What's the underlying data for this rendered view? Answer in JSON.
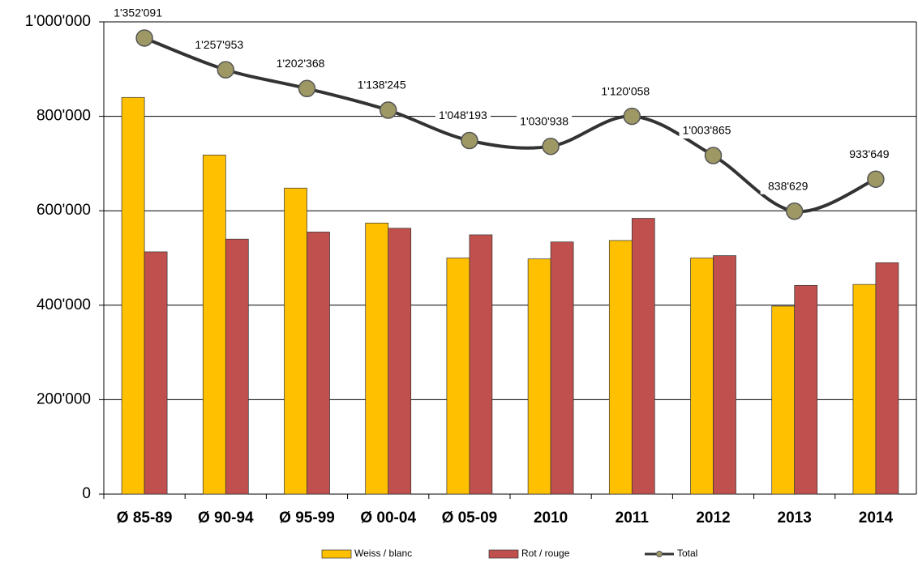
{
  "chart_data": {
    "type": "bar",
    "categories": [
      "Ø 85-89",
      "Ø 90-94",
      "Ø 95-99",
      "Ø 00-04",
      "Ø 05-09",
      "2010",
      "2011",
      "2012",
      "2013",
      "2014"
    ],
    "series": [
      {
        "name": "Weiss / blanc",
        "color": "#ffc000",
        "values": [
          840000,
          718000,
          648000,
          574000,
          500000,
          498000,
          537000,
          500000,
          398000,
          444000
        ]
      },
      {
        "name": "Rot / rouge",
        "color": "#c0504d",
        "values": [
          513000,
          540000,
          555000,
          563000,
          549000,
          534000,
          584000,
          505000,
          442000,
          490000
        ]
      },
      {
        "name": "Total",
        "type": "line",
        "axis": "y2",
        "color": "#333333",
        "marker_color": "#9e9865",
        "values": [
          1352091,
          1257953,
          1202368,
          1138245,
          1048193,
          1030938,
          1120058,
          1003865,
          838629,
          933649
        ],
        "value_labels": [
          "1'352'091",
          "1'257'953",
          "1'202'368",
          "1'138'245",
          "1'048'193",
          "1'030'938",
          "1'120'058",
          "1'003'865",
          "838'629",
          "933'649"
        ]
      }
    ],
    "ylim": [
      0,
      1000000
    ],
    "yticks": [
      {
        "value": 0,
        "label": "0"
      },
      {
        "value": 200000,
        "label": "200'000"
      },
      {
        "value": 400000,
        "label": "400'000"
      },
      {
        "value": 600000,
        "label": "600'000"
      },
      {
        "value": 800000,
        "label": "800'000"
      },
      {
        "value": 1000000,
        "label": "1'000'000"
      }
    ],
    "y2lim": [
      0,
      1400000
    ],
    "grid": true,
    "legend": "bottom"
  }
}
